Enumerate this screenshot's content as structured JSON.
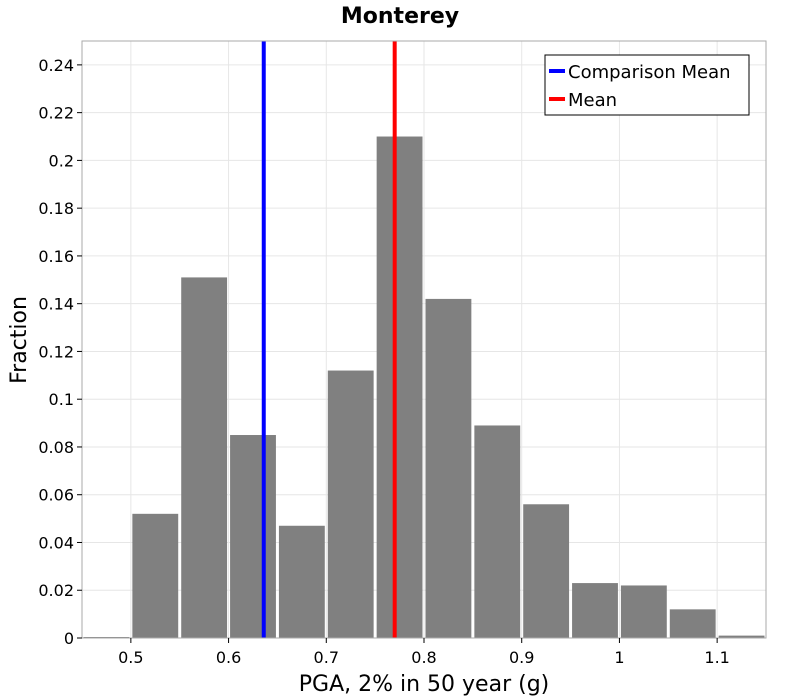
{
  "chart_data": {
    "type": "bar",
    "title": "Monterey",
    "xlabel": "PGA, 2% in 50 year (g)",
    "ylabel": "Fraction",
    "xlim": [
      0.45,
      1.15
    ],
    "ylim": [
      0,
      0.25
    ],
    "x_ticks": [
      "0.5",
      "0.6",
      "0.7",
      "0.8",
      "0.9",
      "1",
      "1.1"
    ],
    "x_tick_values": [
      0.5,
      0.6,
      0.7,
      0.8,
      0.9,
      1.0,
      1.1
    ],
    "y_ticks": [
      "0",
      "0.02",
      "0.04",
      "0.06",
      "0.08",
      "0.1",
      "0.12",
      "0.14",
      "0.16",
      "0.18",
      "0.2",
      "0.22",
      "0.24"
    ],
    "y_tick_values": [
      0,
      0.02,
      0.04,
      0.06,
      0.08,
      0.1,
      0.12,
      0.14,
      0.16,
      0.18,
      0.2,
      0.22,
      0.24
    ],
    "grid": true,
    "bin_width": 0.05,
    "bins": [
      {
        "start": 0.45,
        "value": 0.0
      },
      {
        "start": 0.5,
        "value": 0.052
      },
      {
        "start": 0.55,
        "value": 0.151
      },
      {
        "start": 0.6,
        "value": 0.085
      },
      {
        "start": 0.65,
        "value": 0.047
      },
      {
        "start": 0.7,
        "value": 0.112
      },
      {
        "start": 0.75,
        "value": 0.21
      },
      {
        "start": 0.8,
        "value": 0.142
      },
      {
        "start": 0.85,
        "value": 0.089
      },
      {
        "start": 0.9,
        "value": 0.056
      },
      {
        "start": 0.95,
        "value": 0.023
      },
      {
        "start": 1.0,
        "value": 0.022
      },
      {
        "start": 1.05,
        "value": 0.012
      },
      {
        "start": 1.1,
        "value": 0.001
      }
    ],
    "bar_color": "#808080",
    "reference_lines": [
      {
        "name": "Comparison Mean",
        "x": 0.636,
        "color": "#0000ff"
      },
      {
        "name": "Mean",
        "x": 0.77,
        "color": "#ff0000"
      }
    ],
    "legend_position": "top-right"
  }
}
